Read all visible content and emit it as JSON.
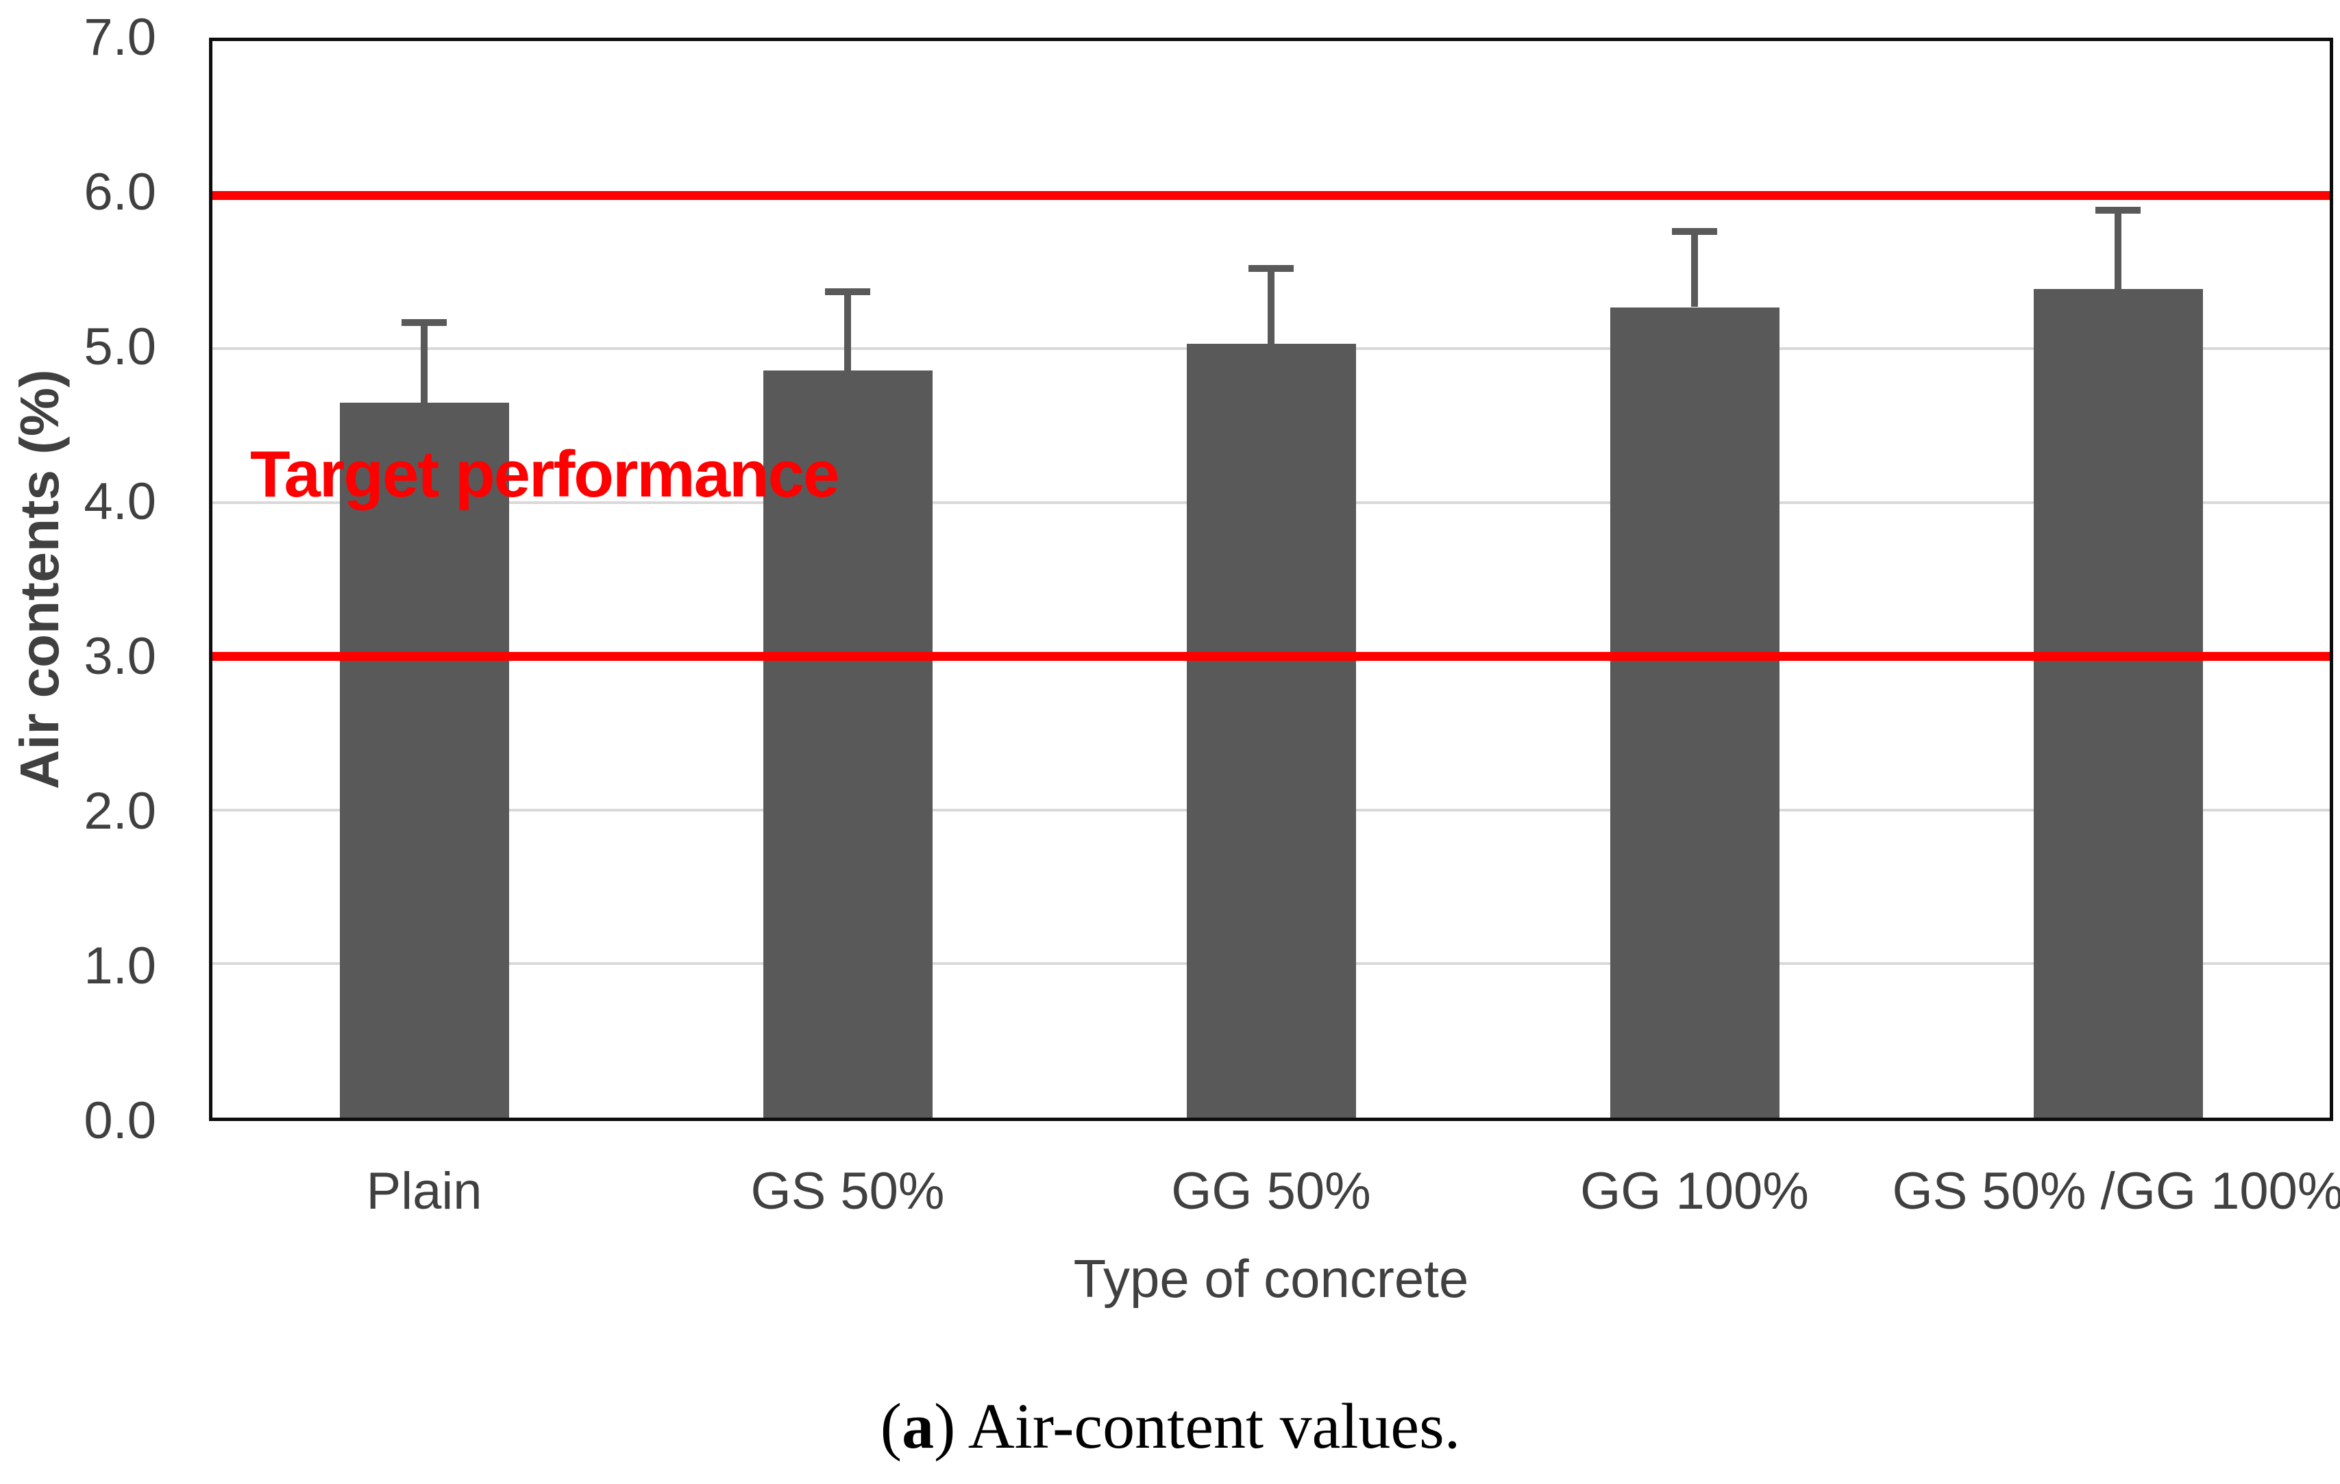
{
  "caption": {
    "open": "(",
    "marker": "a",
    "close": ")",
    "text": " Air-content values."
  },
  "annotation": {
    "label": "Target performance",
    "color": "#ff0000"
  },
  "colors": {
    "bar": "#595959",
    "error_bar": "#595959",
    "target_line": "#ff0000",
    "gridline": "#d9d9d9",
    "axis_frame": "#0d0d0d",
    "axis_text": "#404040"
  },
  "chart_data": {
    "type": "bar",
    "title": "",
    "xlabel": "Type of concrete",
    "ylabel": "Air contents (%)",
    "categories": [
      "Plain",
      "GS 50%",
      "GG 50%",
      "GG 100%",
      "GS 50% /GG 100%"
    ],
    "values": [
      4.65,
      4.86,
      5.03,
      5.27,
      5.39
    ],
    "error_upper": [
      5.17,
      5.37,
      5.52,
      5.76,
      5.9
    ],
    "ylim": [
      0,
      7
    ],
    "ytick_labels": [
      "0.0",
      "1.0",
      "2.0",
      "3.0",
      "4.0",
      "5.0",
      "6.0",
      "7.0"
    ],
    "target_lines": [
      3.0,
      6.0
    ],
    "grid": true,
    "legend": false
  }
}
